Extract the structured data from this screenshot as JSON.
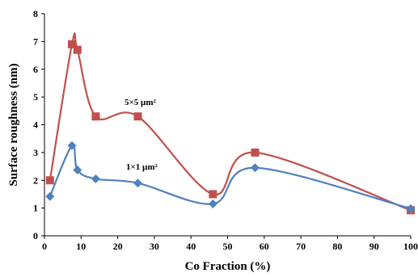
{
  "chart_data": {
    "type": "line",
    "title": "",
    "xlabel": "Co Fraction (%)",
    "ylabel": "Surface roughness (nm)",
    "xlim": [
      0,
      100
    ],
    "ylim": [
      0,
      8
    ],
    "xticks": [
      0,
      10,
      20,
      30,
      40,
      50,
      60,
      70,
      80,
      90,
      100
    ],
    "yticks": [
      0,
      1,
      2,
      3,
      4,
      5,
      6,
      7,
      8
    ],
    "grid": false,
    "smooth": true,
    "series": [
      {
        "name": "5×5 µm²",
        "color": "#c0504d",
        "marker": "square",
        "x": [
          1.5,
          7.5,
          9,
          14,
          25.5,
          46,
          57.5,
          100
        ],
        "y": [
          2.0,
          6.9,
          6.7,
          4.3,
          4.3,
          1.5,
          3.0,
          0.92
        ]
      },
      {
        "name": "1×1 µm²",
        "color": "#4f81bd",
        "marker": "diamond",
        "x": [
          1.5,
          7.5,
          9,
          14,
          25.5,
          46,
          57.5,
          100
        ],
        "y": [
          1.42,
          3.25,
          2.37,
          2.05,
          1.9,
          1.15,
          2.45,
          0.98
        ]
      }
    ]
  }
}
